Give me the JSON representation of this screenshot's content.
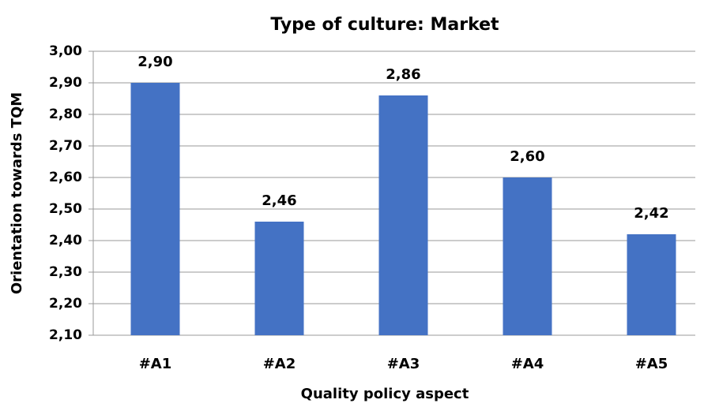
{
  "chart_data": {
    "type": "bar",
    "title": "Type of culture: Market",
    "x_label": "Quality policy aspect",
    "y_label": "Orientation towards TQM",
    "categories": [
      "#A1",
      "#A2",
      "#A3",
      "#A4",
      "#A5"
    ],
    "values": [
      2.9,
      2.46,
      2.86,
      2.6,
      2.42
    ],
    "value_labels": [
      "2,90",
      "2,46",
      "2,86",
      "2,60",
      "2,42"
    ],
    "color": "#4472c4",
    "ylim": [
      2.1,
      3.0
    ],
    "yticks": [
      {
        "value": 2.1,
        "label": "2,10"
      },
      {
        "value": 2.2,
        "label": "2,20"
      },
      {
        "value": 2.3,
        "label": "2,30"
      },
      {
        "value": 2.4,
        "label": "2,40"
      },
      {
        "value": 2.5,
        "label": "2,50"
      },
      {
        "value": 2.6,
        "label": "2,60"
      },
      {
        "value": 2.7,
        "label": "2,70"
      },
      {
        "value": 2.8,
        "label": "2,80"
      },
      {
        "value": 2.9,
        "label": "2,90"
      },
      {
        "value": 3.0,
        "label": "3,00"
      }
    ],
    "grid": true
  }
}
